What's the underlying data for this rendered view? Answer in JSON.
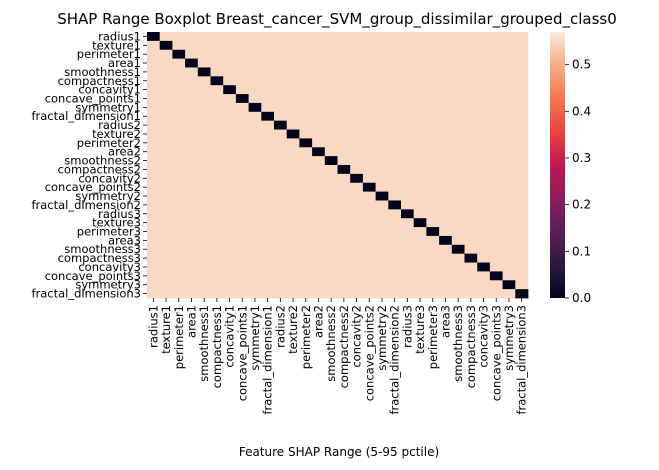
{
  "chart_data": {
    "type": "heatmap",
    "title": "SHAP Range Boxplot Breast_cancer_SVM_group_dissimilar_grouped_class0",
    "xlabel": "Feature SHAP Range (5-95 pctile)",
    "ylabel": "",
    "labels": [
      "radius1",
      "texture1",
      "perimeter1",
      "area1",
      "smoothness1",
      "compactness1",
      "concavity1",
      "concave_points1",
      "symmetry1",
      "fractal_dimension1",
      "radius2",
      "texture2",
      "perimeter2",
      "area2",
      "smoothness2",
      "compactness2",
      "concavity2",
      "concave_points2",
      "symmetry2",
      "fractal_dimension2",
      "radius3",
      "texture3",
      "perimeter3",
      "area3",
      "smoothness3",
      "compactness3",
      "concavity3",
      "concave_points3",
      "symmetry3",
      "fractal_dimension3"
    ],
    "diagonal_value": 0.0,
    "off_diagonal_value": 0.55,
    "colorbar": {
      "vmin": 0.0,
      "vmax": 0.57,
      "ticks": [
        0.0,
        0.1,
        0.2,
        0.3,
        0.4,
        0.5
      ],
      "tick_labels": [
        "0.0",
        "0.1",
        "0.2",
        "0.3",
        "0.4",
        "0.5"
      ],
      "colormap": "rocket"
    }
  }
}
